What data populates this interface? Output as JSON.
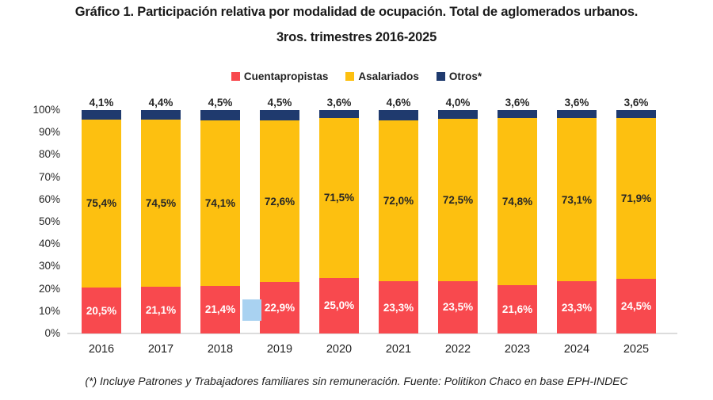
{
  "chart_data": {
    "type": "bar",
    "stacked": true,
    "title": "Gráfico 1. Participación relativa por modalidad de ocupación. Total de aglomerados urbanos.",
    "subtitle": "3ros. trimestres 2016-2025",
    "categories": [
      "2016",
      "2017",
      "2018",
      "2019",
      "2020",
      "2021",
      "2022",
      "2023",
      "2024",
      "2025"
    ],
    "series": [
      {
        "name": "Cuentapropistas",
        "color": "#f8494e",
        "label_color": "#ffffff",
        "label_position": "inside",
        "values": [
          20.5,
          21.1,
          21.4,
          22.9,
          25.0,
          23.3,
          23.5,
          21.6,
          23.3,
          24.5
        ],
        "labels": [
          "20,5%",
          "21,1%",
          "21,4%",
          "22,9%",
          "25,0%",
          "23,3%",
          "23,5%",
          "21,6%",
          "23,3%",
          "24,5%"
        ]
      },
      {
        "name": "Asalariados",
        "color": "#fdc010",
        "label_color": "#262626",
        "label_position": "inside",
        "values": [
          75.4,
          74.5,
          74.1,
          72.6,
          71.5,
          72.0,
          72.5,
          74.8,
          73.1,
          71.9
        ],
        "labels": [
          "75,4%",
          "74,5%",
          "74,1%",
          "72,6%",
          "71,5%",
          "72,0%",
          "72,5%",
          "74,8%",
          "73,1%",
          "71,9%"
        ]
      },
      {
        "name": "Otros*",
        "color": "#1f3a6e",
        "label_color": "#262626",
        "label_position": "above",
        "values": [
          4.1,
          4.4,
          4.5,
          4.5,
          3.6,
          4.6,
          4.0,
          3.6,
          3.6,
          3.6
        ],
        "labels": [
          "4,1%",
          "4,4%",
          "4,5%",
          "4,5%",
          "3,6%",
          "4,6%",
          "4,0%",
          "3,6%",
          "3,6%",
          "3,6%"
        ]
      }
    ],
    "yticks": [
      "100%",
      "90%",
      "80%",
      "70%",
      "60%",
      "50%",
      "40%",
      "30%",
      "20%",
      "10%",
      "0%"
    ],
    "ylim": [
      0,
      100
    ],
    "grid": false,
    "legend_position": "top",
    "axis_line_color": "#dcdcdc"
  },
  "footnote": "(*) Incluye Patrones y Trabajadores familiares sin remuneración. Fuente: Politikon Chaco en base EPH-INDEC",
  "artifact": {
    "description": "light-blue selection square between 2018 and 2019 bars",
    "color": "#a9d2f1"
  }
}
